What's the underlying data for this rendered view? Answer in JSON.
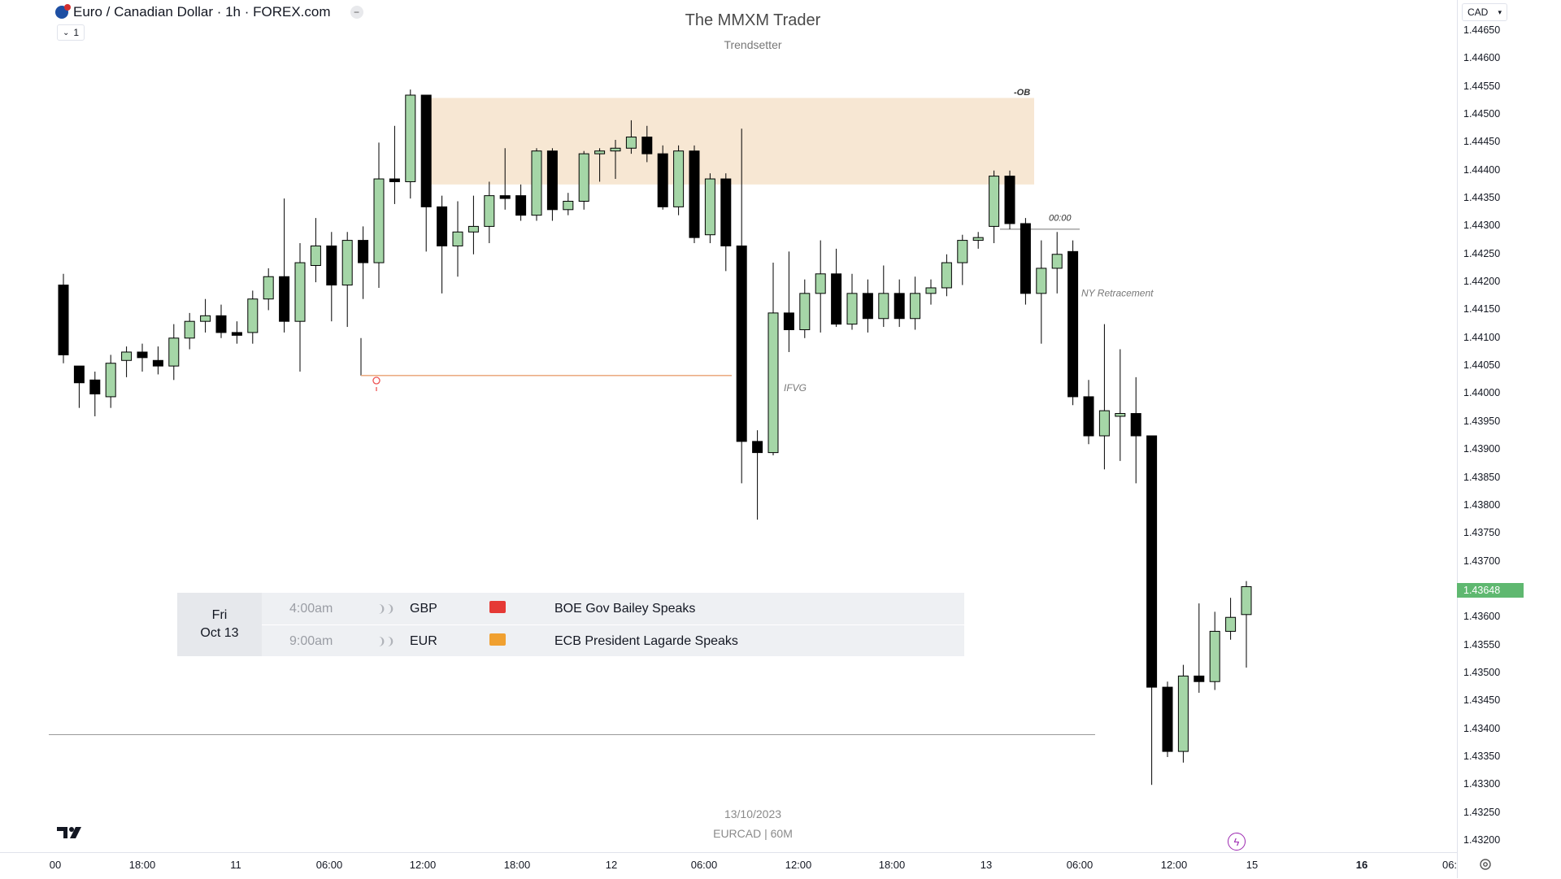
{
  "legend": {
    "symbol_title": "Euro / Canadian Dollar · 1h · FOREX.com",
    "collapse_count": "1"
  },
  "watermark": {
    "title": "The MMXM Trader",
    "subtitle": "Trendsetter",
    "date": "13/10/2023",
    "symbol": "EURCAD | 60M"
  },
  "currency": "CAD",
  "current_price": "1.43648",
  "price_axis": [
    "1.44650",
    "1.44600",
    "1.44550",
    "1.44500",
    "1.44450",
    "1.44400",
    "1.44350",
    "1.44300",
    "1.44250",
    "1.44200",
    "1.44150",
    "1.44100",
    "1.44050",
    "1.44000",
    "1.43950",
    "1.43900",
    "1.43850",
    "1.43800",
    "1.43750",
    "1.43700",
    "1.43600",
    "1.43550",
    "1.43500",
    "1.43450",
    "1.43400",
    "1.43350",
    "1.43300",
    "1.43250",
    "1.43200"
  ],
  "time_axis": [
    {
      "label": "00",
      "bold": false
    },
    {
      "label": "18:00",
      "bold": false
    },
    {
      "label": "11",
      "bold": false
    },
    {
      "label": "06:00",
      "bold": false
    },
    {
      "label": "12:00",
      "bold": false
    },
    {
      "label": "18:00",
      "bold": false
    },
    {
      "label": "12",
      "bold": false
    },
    {
      "label": "06:00",
      "bold": false
    },
    {
      "label": "12:00",
      "bold": false
    },
    {
      "label": "18:00",
      "bold": false
    },
    {
      "label": "13",
      "bold": false
    },
    {
      "label": "06:00",
      "bold": false
    },
    {
      "label": "12:00",
      "bold": false
    },
    {
      "label": "15",
      "bold": false
    },
    {
      "label": "16",
      "bold": true
    },
    {
      "label": "06:",
      "bold": false
    }
  ],
  "annotations": {
    "ob": "-OB",
    "midnight": "00:00",
    "ny_retracement": "NY Retracement",
    "ifvg": "IFVG"
  },
  "events": {
    "day": "Fri",
    "date": "Oct 13",
    "rows": [
      {
        "time": "4:00am",
        "currency": "GBP",
        "impact_color": "#e53935",
        "title": "BOE Gov Bailey Speaks"
      },
      {
        "time": "9:00am",
        "currency": "EUR",
        "impact_color": "#f0a030",
        "title": "ECB President Lagarde Speaks"
      }
    ]
  },
  "colors": {
    "bull": "#a5d6a7",
    "bear": "#000000",
    "ob_zone": "#f7e7d3",
    "level_line": "#e8a070"
  },
  "icons": [
    "flag-icon",
    "minus-icon",
    "chevron-down-icon",
    "tradingview-logo",
    "lightning-icon",
    "settings-icon",
    "alert-pin-icon"
  ],
  "chart_data": {
    "type": "candlestick",
    "ylim": [
      1.4318,
      1.4466
    ],
    "candles": [
      {
        "o": 1.44195,
        "h": 1.44215,
        "l": 1.44055,
        "c": 1.4407
      },
      {
        "o": 1.4405,
        "h": 1.44045,
        "l": 1.43975,
        "c": 1.4402
      },
      {
        "o": 1.44025,
        "h": 1.4404,
        "l": 1.4396,
        "c": 1.44
      },
      {
        "o": 1.43995,
        "h": 1.4407,
        "l": 1.43975,
        "c": 1.44055
      },
      {
        "o": 1.4406,
        "h": 1.44085,
        "l": 1.4403,
        "c": 1.44075
      },
      {
        "o": 1.44075,
        "h": 1.4409,
        "l": 1.4404,
        "c": 1.44065
      },
      {
        "o": 1.4406,
        "h": 1.44085,
        "l": 1.44035,
        "c": 1.4405
      },
      {
        "o": 1.4405,
        "h": 1.44125,
        "l": 1.44025,
        "c": 1.441
      },
      {
        "o": 1.441,
        "h": 1.44145,
        "l": 1.4408,
        "c": 1.4413
      },
      {
        "o": 1.4413,
        "h": 1.4417,
        "l": 1.4411,
        "c": 1.4414
      },
      {
        "o": 1.4414,
        "h": 1.4416,
        "l": 1.441,
        "c": 1.4411
      },
      {
        "o": 1.4411,
        "h": 1.4413,
        "l": 1.4409,
        "c": 1.44105
      },
      {
        "o": 1.4411,
        "h": 1.44185,
        "l": 1.4409,
        "c": 1.4417
      },
      {
        "o": 1.4417,
        "h": 1.44225,
        "l": 1.4415,
        "c": 1.4421
      },
      {
        "o": 1.4421,
        "h": 1.4435,
        "l": 1.4411,
        "c": 1.4413
      },
      {
        "o": 1.4413,
        "h": 1.4427,
        "l": 1.4404,
        "c": 1.44235
      },
      {
        "o": 1.4423,
        "h": 1.44315,
        "l": 1.442,
        "c": 1.44265
      },
      {
        "o": 1.44265,
        "h": 1.4429,
        "l": 1.4413,
        "c": 1.44195
      },
      {
        "o": 1.44195,
        "h": 1.4429,
        "l": 1.4412,
        "c": 1.44275
      },
      {
        "o": 1.44275,
        "h": 1.443,
        "l": 1.4417,
        "c": 1.44235
      },
      {
        "o": 1.44235,
        "h": 1.4445,
        "l": 1.4419,
        "c": 1.44385
      },
      {
        "o": 1.44385,
        "h": 1.4448,
        "l": 1.4434,
        "c": 1.4438
      },
      {
        "o": 1.4438,
        "h": 1.44545,
        "l": 1.4435,
        "c": 1.44535
      },
      {
        "o": 1.44535,
        "h": 1.4453,
        "l": 1.44255,
        "c": 1.44335
      },
      {
        "o": 1.44335,
        "h": 1.44355,
        "l": 1.4418,
        "c": 1.44265
      },
      {
        "o": 1.44265,
        "h": 1.44345,
        "l": 1.4421,
        "c": 1.4429
      },
      {
        "o": 1.4429,
        "h": 1.44355,
        "l": 1.4425,
        "c": 1.443
      },
      {
        "o": 1.443,
        "h": 1.4438,
        "l": 1.4427,
        "c": 1.44355
      },
      {
        "o": 1.44355,
        "h": 1.4444,
        "l": 1.4433,
        "c": 1.4435
      },
      {
        "o": 1.44355,
        "h": 1.44375,
        "l": 1.4431,
        "c": 1.4432
      },
      {
        "o": 1.4432,
        "h": 1.4444,
        "l": 1.4431,
        "c": 1.44435
      },
      {
        "o": 1.44435,
        "h": 1.4444,
        "l": 1.4431,
        "c": 1.4433
      },
      {
        "o": 1.4433,
        "h": 1.4436,
        "l": 1.4432,
        "c": 1.44345
      },
      {
        "o": 1.44345,
        "h": 1.44435,
        "l": 1.4433,
        "c": 1.4443
      },
      {
        "o": 1.4443,
        "h": 1.4444,
        "l": 1.4438,
        "c": 1.44435
      },
      {
        "o": 1.44435,
        "h": 1.44455,
        "l": 1.44385,
        "c": 1.4444
      },
      {
        "o": 1.4444,
        "h": 1.4449,
        "l": 1.4443,
        "c": 1.4446
      },
      {
        "o": 1.4446,
        "h": 1.4448,
        "l": 1.44415,
        "c": 1.4443
      },
      {
        "o": 1.4443,
        "h": 1.44445,
        "l": 1.4433,
        "c": 1.44335
      },
      {
        "o": 1.44335,
        "h": 1.44445,
        "l": 1.4432,
        "c": 1.44435
      },
      {
        "o": 1.44435,
        "h": 1.44445,
        "l": 1.4427,
        "c": 1.4428
      },
      {
        "o": 1.44285,
        "h": 1.44395,
        "l": 1.4427,
        "c": 1.44385
      },
      {
        "o": 1.44385,
        "h": 1.44395,
        "l": 1.4422,
        "c": 1.44265
      },
      {
        "o": 1.44265,
        "h": 1.44475,
        "l": 1.4384,
        "c": 1.43915
      },
      {
        "o": 1.43915,
        "h": 1.43935,
        "l": 1.43775,
        "c": 1.43895
      },
      {
        "o": 1.43895,
        "h": 1.44235,
        "l": 1.4389,
        "c": 1.44145
      },
      {
        "o": 1.44145,
        "h": 1.44255,
        "l": 1.44075,
        "c": 1.44115
      },
      {
        "o": 1.44115,
        "h": 1.44205,
        "l": 1.441,
        "c": 1.4418
      },
      {
        "o": 1.4418,
        "h": 1.44275,
        "l": 1.4411,
        "c": 1.44215
      },
      {
        "o": 1.44215,
        "h": 1.4426,
        "l": 1.4412,
        "c": 1.44125
      },
      {
        "o": 1.44125,
        "h": 1.44215,
        "l": 1.44115,
        "c": 1.4418
      },
      {
        "o": 1.4418,
        "h": 1.44205,
        "l": 1.4411,
        "c": 1.44135
      },
      {
        "o": 1.44135,
        "h": 1.4423,
        "l": 1.4412,
        "c": 1.4418
      },
      {
        "o": 1.4418,
        "h": 1.44205,
        "l": 1.4412,
        "c": 1.44135
      },
      {
        "o": 1.44135,
        "h": 1.4421,
        "l": 1.44115,
        "c": 1.4418
      },
      {
        "o": 1.4418,
        "h": 1.44205,
        "l": 1.4416,
        "c": 1.4419
      },
      {
        "o": 1.4419,
        "h": 1.4425,
        "l": 1.44175,
        "c": 1.44235
      },
      {
        "o": 1.44235,
        "h": 1.44285,
        "l": 1.44195,
        "c": 1.44275
      },
      {
        "o": 1.44275,
        "h": 1.4429,
        "l": 1.4426,
        "c": 1.4428
      },
      {
        "o": 1.443,
        "h": 1.444,
        "l": 1.4427,
        "c": 1.4439
      },
      {
        "o": 1.4439,
        "h": 1.444,
        "l": 1.44295,
        "c": 1.44305
      },
      {
        "o": 1.44305,
        "h": 1.44315,
        "l": 1.4416,
        "c": 1.4418
      },
      {
        "o": 1.4418,
        "h": 1.44275,
        "l": 1.4409,
        "c": 1.44225
      },
      {
        "o": 1.44225,
        "h": 1.4429,
        "l": 1.4418,
        "c": 1.4425
      },
      {
        "o": 1.44255,
        "h": 1.44275,
        "l": 1.4398,
        "c": 1.43995
      },
      {
        "o": 1.43995,
        "h": 1.44025,
        "l": 1.4391,
        "c": 1.43925
      },
      {
        "o": 1.43925,
        "h": 1.44125,
        "l": 1.43865,
        "c": 1.4397
      },
      {
        "o": 1.4396,
        "h": 1.4408,
        "l": 1.4388,
        "c": 1.43965
      },
      {
        "o": 1.43965,
        "h": 1.4403,
        "l": 1.4384,
        "c": 1.43925
      },
      {
        "o": 1.43925,
        "h": 1.43925,
        "l": 1.433,
        "c": 1.43475
      },
      {
        "o": 1.43475,
        "h": 1.43485,
        "l": 1.4335,
        "c": 1.4336
      },
      {
        "o": 1.4336,
        "h": 1.43515,
        "l": 1.4334,
        "c": 1.43495
      },
      {
        "o": 1.43495,
        "h": 1.43625,
        "l": 1.43465,
        "c": 1.43485
      },
      {
        "o": 1.43485,
        "h": 1.4361,
        "l": 1.4347,
        "c": 1.43575
      },
      {
        "o": 1.43575,
        "h": 1.43635,
        "l": 1.4356,
        "c": 1.436
      },
      {
        "o": 1.43605,
        "h": 1.43665,
        "l": 1.4351,
        "c": 1.43655
      }
    ]
  }
}
